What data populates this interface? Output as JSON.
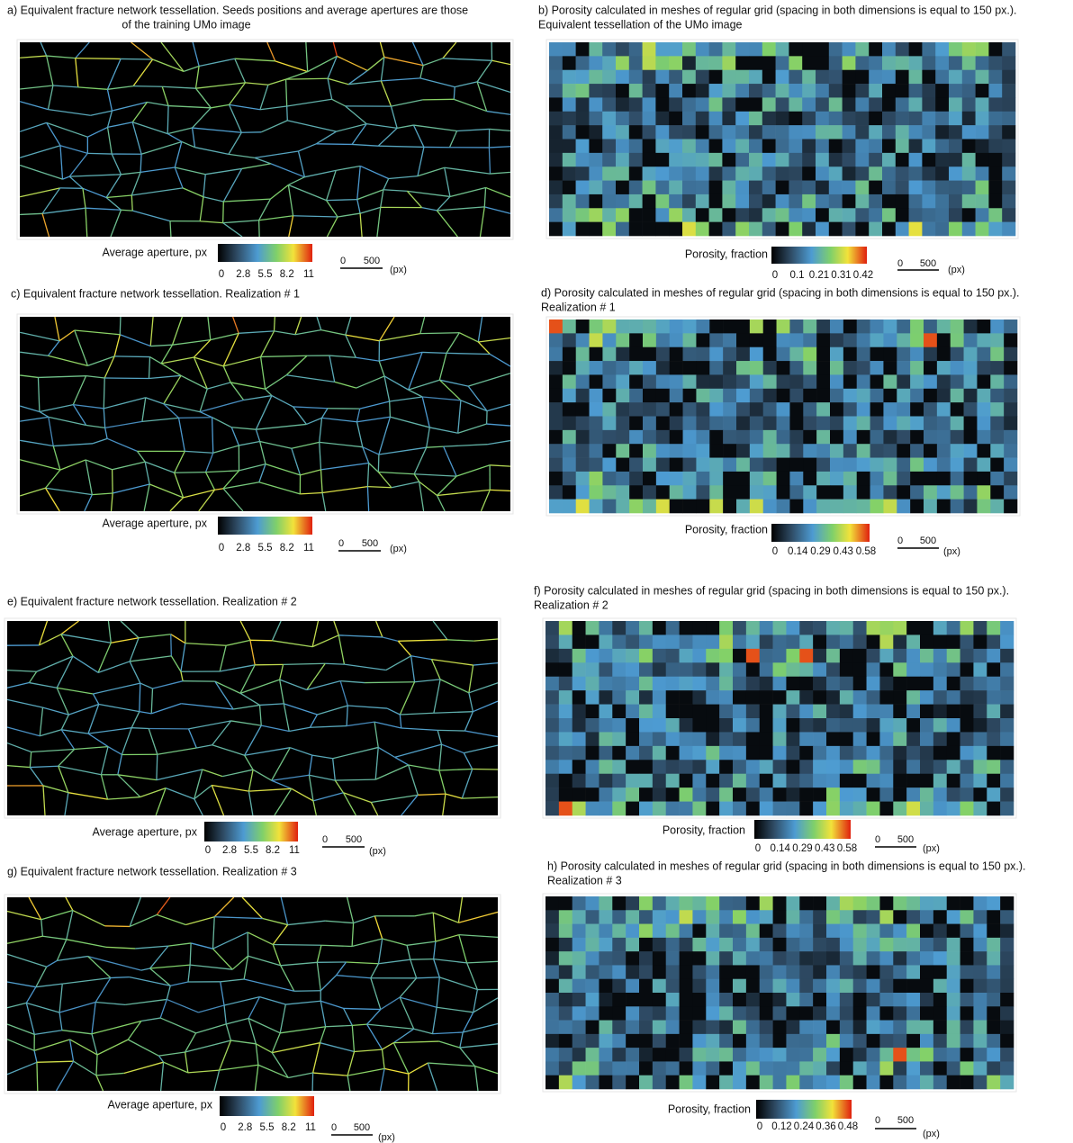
{
  "panels": [
    {
      "caption": [
        "a) Equivalent fracture network tessellation. Seeds positions and average apertures are those",
        "of the training UMo image"
      ],
      "colorbar": {
        "label": "Average aperture, px",
        "ticks": [
          0,
          2.8,
          5.5,
          8.2,
          11
        ]
      },
      "scale": {
        "start": 0,
        "end": 500,
        "unit": "(px)"
      }
    },
    {
      "caption": [
        "b) Porosity calculated in meshes of regular grid (spacing  in  both dimensions  is equal to 150 px.).",
        "Equivalent tessellation of the UMo image"
      ],
      "colorbar": {
        "label": "Porosity, fraction",
        "ticks": [
          0,
          0.1,
          0.21,
          0.31,
          0.42
        ]
      },
      "scale": {
        "start": 0,
        "end": 500,
        "unit": "(px)"
      }
    },
    {
      "caption": [
        "c) Equivalent fracture network tessellation. Realization # 1"
      ],
      "colorbar": {
        "label": "Average aperture, px",
        "ticks": [
          0,
          2.8,
          5.5,
          8.2,
          11
        ]
      },
      "scale": {
        "start": 0,
        "end": 500,
        "unit": "(px)"
      }
    },
    {
      "caption": [
        "d) Porosity calculated in meshes of regular grid (spacing  in  both dimensions  is equal to 150 px.).",
        "Realization # 1"
      ],
      "colorbar": {
        "label": "Porosity, fraction",
        "ticks": [
          0,
          0.14,
          0.29,
          0.43,
          0.58
        ]
      },
      "scale": {
        "start": 0,
        "end": 500,
        "unit": "(px)"
      }
    },
    {
      "caption": [
        "e) Equivalent fracture network tessellation. Realization # 2"
      ],
      "colorbar": {
        "label": "Average aperture, px",
        "ticks": [
          0,
          2.8,
          5.5,
          8.2,
          11
        ]
      },
      "scale": {
        "start": 0,
        "end": 500,
        "unit": "(px)"
      }
    },
    {
      "caption": [
        "f) Porosity calculated in meshes of regular grid (spacing  in  both dimensions is equal to 150 px.).",
        "Realization # 2"
      ],
      "colorbar": {
        "label": "Porosity, fraction",
        "ticks": [
          0,
          0.14,
          0.29,
          0.43,
          0.58
        ]
      },
      "scale": {
        "start": 0,
        "end": 500,
        "unit": "(px)"
      }
    },
    {
      "caption": [
        "g) Equivalent fracture network tessellation. Realization # 3"
      ],
      "colorbar": {
        "label": "Average aperture, px",
        "ticks": [
          0,
          2.8,
          5.5,
          8.2,
          11
        ]
      },
      "scale": {
        "start": 0,
        "end": 500,
        "unit": "(px)"
      }
    },
    {
      "caption": [
        "h) Porosity calculated in meshes of regular grid (spacing  in  both dimensions is equal to 150 px.).",
        "Realization # 3"
      ],
      "colorbar": {
        "label": "Porosity, fraction",
        "ticks": [
          0,
          0.12,
          0.24,
          0.36,
          0.48
        ]
      },
      "scale": {
        "start": 0,
        "end": 500,
        "unit": "(px)"
      }
    }
  ]
}
